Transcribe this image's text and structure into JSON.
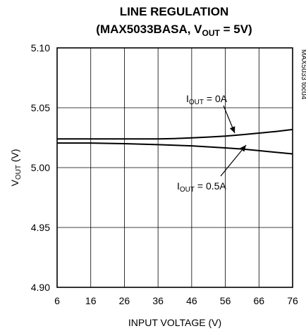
{
  "chart_data": {
    "type": "line",
    "title_line1": "LINE REGULATION",
    "title_line2_prefix": "(MAX5033BASA, V",
    "title_line2_sub": "OUT",
    "title_line2_suffix": " = 5V)",
    "xlabel": "INPUT VOLTAGE (V)",
    "ylabel_main": "V",
    "ylabel_sub": "OUT",
    "ylabel_suffix": " (V)",
    "xlim": [
      6,
      76
    ],
    "ylim": [
      4.9,
      5.1
    ],
    "x_ticks": [
      "6",
      "16",
      "26",
      "36",
      "46",
      "56",
      "66",
      "76"
    ],
    "y_ticks": [
      "5.10",
      "5.05",
      "5.00",
      "4.95",
      "4.90"
    ],
    "grid": true,
    "side_label": "MAX5033 toc04",
    "series": [
      {
        "name_main": "I",
        "name_sub": "OUT",
        "name_suffix": " = 0A",
        "x": [
          6,
          16,
          26,
          36,
          41,
          46,
          51,
          56,
          61,
          66,
          71,
          76
        ],
        "y": [
          5.024,
          5.024,
          5.024,
          5.024,
          5.0243,
          5.0248,
          5.0255,
          5.0263,
          5.0275,
          5.0288,
          5.0302,
          5.0318
        ]
      },
      {
        "name_main": "I",
        "name_sub": "OUT",
        "name_suffix": " = 0.5A",
        "x": [
          6,
          16,
          26,
          36,
          46,
          56,
          61,
          66,
          71,
          76
        ],
        "y": [
          5.0205,
          5.0205,
          5.02,
          5.0192,
          5.0182,
          5.0165,
          5.0155,
          5.0142,
          5.0128,
          5.0115
        ]
      }
    ]
  }
}
